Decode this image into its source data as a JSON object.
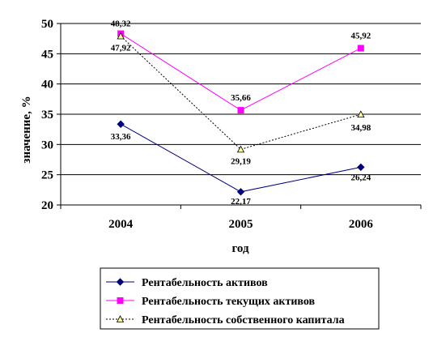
{
  "chart_data": {
    "type": "line",
    "categories": [
      "2004",
      "2005",
      "2006"
    ],
    "xlabel": "год",
    "ylabel": "значение, %",
    "ylim": [
      20,
      50
    ],
    "yticks": [
      20,
      25,
      30,
      35,
      40,
      45,
      50
    ],
    "grid": true,
    "legend_position": "bottom",
    "series": [
      {
        "name": "Рентабельность активов",
        "values": [
          33.36,
          22.17,
          26.24
        ],
        "labels": [
          "33,36",
          "22,17",
          "26,24"
        ],
        "color": "#000080",
        "marker": "diamond",
        "dash": "solid"
      },
      {
        "name": "Рентабельность текущих активов",
        "values": [
          48.32,
          35.66,
          45.92
        ],
        "labels": [
          "48,32",
          "35,66",
          "45,92"
        ],
        "color": "#ff00ff",
        "marker": "square",
        "dash": "solid"
      },
      {
        "name": "Рентабельность собственного капитала",
        "values": [
          47.92,
          29.19,
          34.98
        ],
        "labels": [
          "47,92",
          "29,19",
          "34,98"
        ],
        "color": "#000000",
        "marker": "triangle",
        "marker_fill": "#ffff99",
        "dash": "dotted"
      }
    ]
  }
}
